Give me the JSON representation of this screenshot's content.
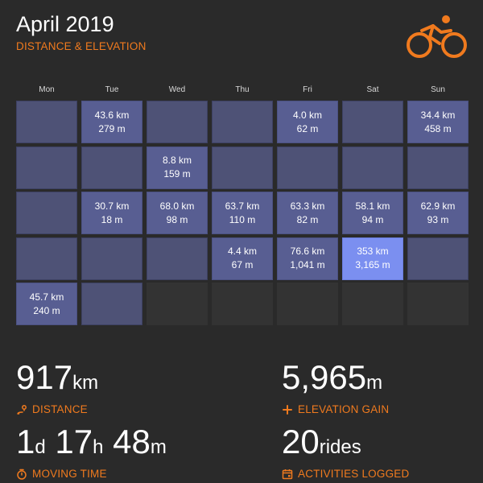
{
  "header": {
    "title": "April 2019",
    "subtitle": "DISTANCE & ELEVATION",
    "logo_icon": "cyclist-icon",
    "accent_color": "#f07a1e"
  },
  "calendar": {
    "day_headers": [
      "Mon",
      "Tue",
      "Wed",
      "Thu",
      "Fri",
      "Sat",
      "Sun"
    ],
    "weeks": [
      [
        {
          "status": "blank"
        },
        {
          "status": "data",
          "distance": "43.6 km",
          "elevation": "279 m"
        },
        {
          "status": "blank"
        },
        {
          "status": "blank"
        },
        {
          "status": "data",
          "distance": "4.0 km",
          "elevation": "62 m"
        },
        {
          "status": "blank"
        },
        {
          "status": "data",
          "distance": "34.4 km",
          "elevation": "458 m"
        }
      ],
      [
        {
          "status": "blank"
        },
        {
          "status": "blank"
        },
        {
          "status": "data",
          "distance": "8.8 km",
          "elevation": "159 m"
        },
        {
          "status": "blank"
        },
        {
          "status": "blank"
        },
        {
          "status": "blank"
        },
        {
          "status": "blank"
        }
      ],
      [
        {
          "status": "blank"
        },
        {
          "status": "data",
          "distance": "30.7 km",
          "elevation": "18 m"
        },
        {
          "status": "data",
          "distance": "68.0 km",
          "elevation": "98 m"
        },
        {
          "status": "data",
          "distance": "63.7 km",
          "elevation": "110 m"
        },
        {
          "status": "data",
          "distance": "63.3 km",
          "elevation": "82 m"
        },
        {
          "status": "data",
          "distance": "58.1 km",
          "elevation": "94 m"
        },
        {
          "status": "data",
          "distance": "62.9 km",
          "elevation": "93 m"
        }
      ],
      [
        {
          "status": "blank"
        },
        {
          "status": "blank"
        },
        {
          "status": "blank"
        },
        {
          "status": "data",
          "distance": "4.4 km",
          "elevation": "67 m"
        },
        {
          "status": "data",
          "distance": "76.6 km",
          "elevation": "1,041 m"
        },
        {
          "status": "max",
          "distance": "353 km",
          "elevation": "3,165 m"
        },
        {
          "status": "blank"
        }
      ],
      [
        {
          "status": "data",
          "distance": "45.7 km",
          "elevation": "240 m"
        },
        {
          "status": "blank"
        },
        {
          "status": "empty"
        },
        {
          "status": "empty"
        },
        {
          "status": "empty"
        },
        {
          "status": "empty"
        },
        {
          "status": "empty"
        }
      ]
    ]
  },
  "stats": {
    "distance": {
      "value": "917",
      "unit": "km",
      "label": "DISTANCE",
      "icon": "route-pin-icon"
    },
    "elevation": {
      "value": "5,965",
      "unit": "m",
      "label": "ELEVATION GAIN",
      "icon": "plus-icon"
    },
    "moving_time": {
      "days": "1",
      "days_unit": "d",
      "hours": "17",
      "hours_unit": "h",
      "minutes": "48",
      "minutes_unit": "m",
      "label": "MOVING TIME",
      "icon": "stopwatch-icon"
    },
    "activities": {
      "value": "20",
      "unit": "rides",
      "label": "ACTIVITIES LOGGED",
      "icon": "calendar-icon"
    }
  }
}
